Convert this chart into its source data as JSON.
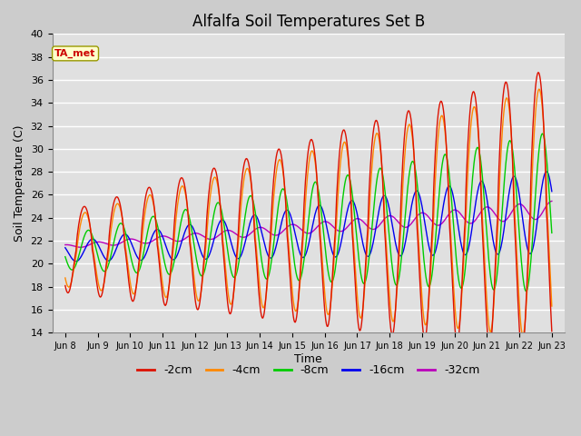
{
  "title": "Alfalfa Soil Temperatures Set B",
  "xlabel": "Time",
  "ylabel": "Soil Temperature (C)",
  "ylim": [
    14,
    40
  ],
  "yticks": [
    14,
    16,
    18,
    20,
    22,
    24,
    26,
    28,
    30,
    32,
    34,
    36,
    38,
    40
  ],
  "colors": {
    "-2cm": "#dd1100",
    "-4cm": "#ff8800",
    "-8cm": "#00cc00",
    "-16cm": "#0000ee",
    "-32cm": "#bb00bb"
  },
  "ta_met_label": "TA_met",
  "ta_met_bg": "#ffffcc",
  "ta_met_text_color": "#cc0000",
  "ta_met_border_color": "#999900",
  "fig_bg": "#cccccc",
  "plot_bg": "#e0e0e0",
  "n_days": 15,
  "start_day": 8
}
